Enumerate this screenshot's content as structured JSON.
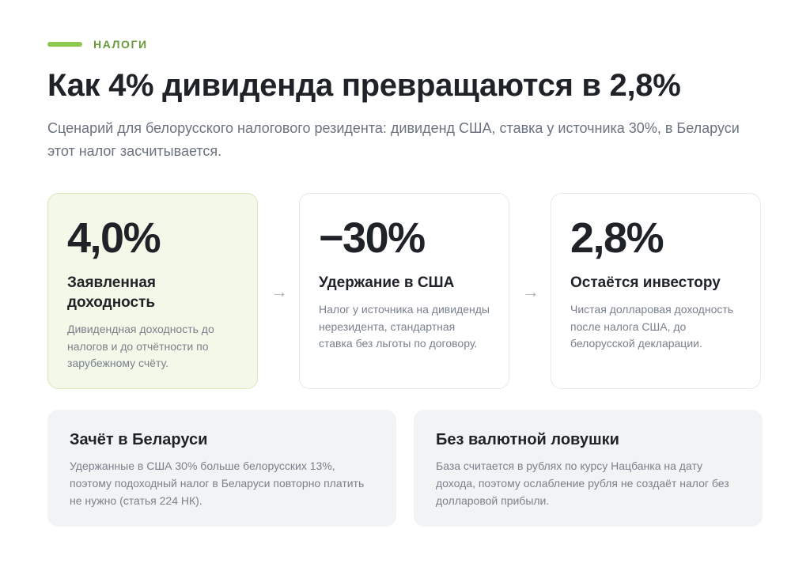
{
  "eyebrow": {
    "label": "НАЛОГИ"
  },
  "title": "Как 4% дивиденда превращаются в 2,8%",
  "subtitle": "Сценарий для белорусского налогового резидента: дивиденд США, ставка у источника 30%, в Беларуси этот налог засчитывается.",
  "cards": [
    {
      "value": "4,0%",
      "heading": "Заявленная доходность",
      "text": "Дивидендная доходность до налогов и до отчётности по зарубежному счёту."
    },
    {
      "value": "−30%",
      "heading": "Удержание в США",
      "text": "Налог у источника на дивиденды нерезидента, стандартная ставка без льготы по договору."
    },
    {
      "value": "2,8%",
      "heading": "Остаётся инвестору",
      "text": "Чистая долларовая доходность после налога США, до белорусской декларации."
    }
  ],
  "arrows": [
    "→",
    "→"
  ],
  "notes": [
    {
      "heading": "Зачёт в Беларуси",
      "text": "Удержанные в США 30% больше белорусских 13%, поэтому подоходный налог в Беларуси повторно платить не нужно (статья 224 НК)."
    },
    {
      "heading": "Без валютной ловушки",
      "text": "База считается в рублях по курсу Нацбанка на дату дохода, поэтому ослабление рубля не создаёт налог без долларовой прибыли."
    }
  ],
  "colors": {
    "accent": "#8cc84b",
    "eyebrow_text": "#6a9a3a",
    "highlight_card_bg": "#f3f8e9",
    "note_bg": "#f2f3f5"
  }
}
